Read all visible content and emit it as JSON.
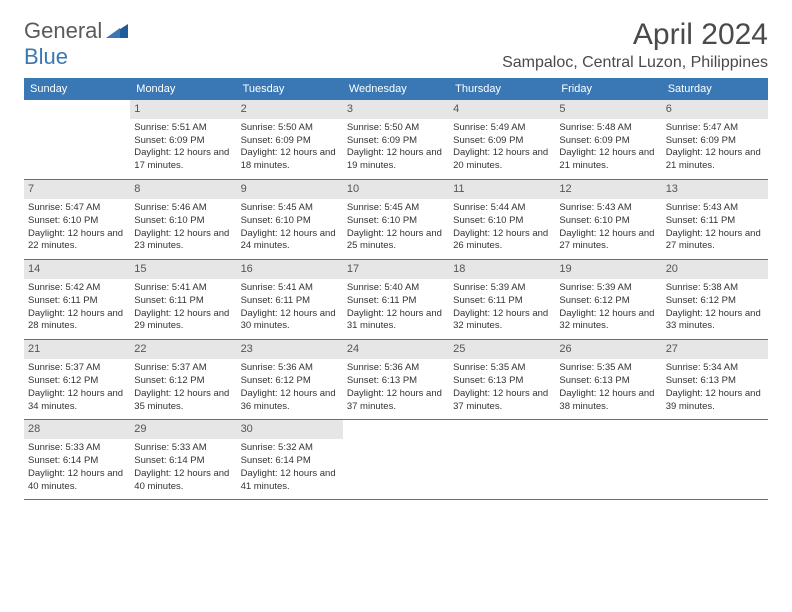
{
  "logo": {
    "line1": "General",
    "line2": "Blue"
  },
  "title": "April 2024",
  "location": "Sampaloc, Central Luzon, Philippines",
  "colors": {
    "header_bg": "#3a78b5",
    "header_text": "#ffffff",
    "daynum_bg": "#e6e6e6",
    "daynum_text": "#555555",
    "body_text": "#333333",
    "border": "#3a78b5"
  },
  "weekdays": [
    "Sunday",
    "Monday",
    "Tuesday",
    "Wednesday",
    "Thursday",
    "Friday",
    "Saturday"
  ],
  "calendar": {
    "first_weekday_index": 1,
    "days": [
      {
        "n": 1,
        "sr": "5:51 AM",
        "ss": "6:09 PM",
        "dl": "12 hours and 17 minutes."
      },
      {
        "n": 2,
        "sr": "5:50 AM",
        "ss": "6:09 PM",
        "dl": "12 hours and 18 minutes."
      },
      {
        "n": 3,
        "sr": "5:50 AM",
        "ss": "6:09 PM",
        "dl": "12 hours and 19 minutes."
      },
      {
        "n": 4,
        "sr": "5:49 AM",
        "ss": "6:09 PM",
        "dl": "12 hours and 20 minutes."
      },
      {
        "n": 5,
        "sr": "5:48 AM",
        "ss": "6:09 PM",
        "dl": "12 hours and 21 minutes."
      },
      {
        "n": 6,
        "sr": "5:47 AM",
        "ss": "6:09 PM",
        "dl": "12 hours and 21 minutes."
      },
      {
        "n": 7,
        "sr": "5:47 AM",
        "ss": "6:10 PM",
        "dl": "12 hours and 22 minutes."
      },
      {
        "n": 8,
        "sr": "5:46 AM",
        "ss": "6:10 PM",
        "dl": "12 hours and 23 minutes."
      },
      {
        "n": 9,
        "sr": "5:45 AM",
        "ss": "6:10 PM",
        "dl": "12 hours and 24 minutes."
      },
      {
        "n": 10,
        "sr": "5:45 AM",
        "ss": "6:10 PM",
        "dl": "12 hours and 25 minutes."
      },
      {
        "n": 11,
        "sr": "5:44 AM",
        "ss": "6:10 PM",
        "dl": "12 hours and 26 minutes."
      },
      {
        "n": 12,
        "sr": "5:43 AM",
        "ss": "6:10 PM",
        "dl": "12 hours and 27 minutes."
      },
      {
        "n": 13,
        "sr": "5:43 AM",
        "ss": "6:11 PM",
        "dl": "12 hours and 27 minutes."
      },
      {
        "n": 14,
        "sr": "5:42 AM",
        "ss": "6:11 PM",
        "dl": "12 hours and 28 minutes."
      },
      {
        "n": 15,
        "sr": "5:41 AM",
        "ss": "6:11 PM",
        "dl": "12 hours and 29 minutes."
      },
      {
        "n": 16,
        "sr": "5:41 AM",
        "ss": "6:11 PM",
        "dl": "12 hours and 30 minutes."
      },
      {
        "n": 17,
        "sr": "5:40 AM",
        "ss": "6:11 PM",
        "dl": "12 hours and 31 minutes."
      },
      {
        "n": 18,
        "sr": "5:39 AM",
        "ss": "6:11 PM",
        "dl": "12 hours and 32 minutes."
      },
      {
        "n": 19,
        "sr": "5:39 AM",
        "ss": "6:12 PM",
        "dl": "12 hours and 32 minutes."
      },
      {
        "n": 20,
        "sr": "5:38 AM",
        "ss": "6:12 PM",
        "dl": "12 hours and 33 minutes."
      },
      {
        "n": 21,
        "sr": "5:37 AM",
        "ss": "6:12 PM",
        "dl": "12 hours and 34 minutes."
      },
      {
        "n": 22,
        "sr": "5:37 AM",
        "ss": "6:12 PM",
        "dl": "12 hours and 35 minutes."
      },
      {
        "n": 23,
        "sr": "5:36 AM",
        "ss": "6:12 PM",
        "dl": "12 hours and 36 minutes."
      },
      {
        "n": 24,
        "sr": "5:36 AM",
        "ss": "6:13 PM",
        "dl": "12 hours and 37 minutes."
      },
      {
        "n": 25,
        "sr": "5:35 AM",
        "ss": "6:13 PM",
        "dl": "12 hours and 37 minutes."
      },
      {
        "n": 26,
        "sr": "5:35 AM",
        "ss": "6:13 PM",
        "dl": "12 hours and 38 minutes."
      },
      {
        "n": 27,
        "sr": "5:34 AM",
        "ss": "6:13 PM",
        "dl": "12 hours and 39 minutes."
      },
      {
        "n": 28,
        "sr": "5:33 AM",
        "ss": "6:14 PM",
        "dl": "12 hours and 40 minutes."
      },
      {
        "n": 29,
        "sr": "5:33 AM",
        "ss": "6:14 PM",
        "dl": "12 hours and 40 minutes."
      },
      {
        "n": 30,
        "sr": "5:32 AM",
        "ss": "6:14 PM",
        "dl": "12 hours and 41 minutes."
      }
    ]
  },
  "labels": {
    "sunrise": "Sunrise:",
    "sunset": "Sunset:",
    "daylight": "Daylight:"
  }
}
